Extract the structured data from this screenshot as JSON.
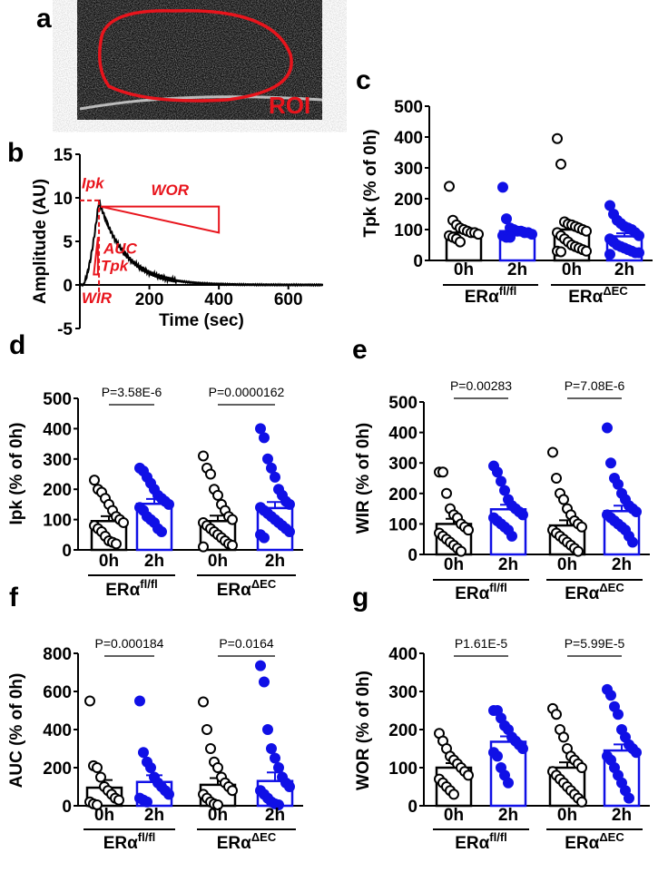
{
  "colors": {
    "control": "#000000",
    "treated": "#1010e6",
    "annotation": "#e8141c"
  },
  "panel_a": {
    "letter": "a",
    "roi_label": "ROI"
  },
  "chart_data": [
    {
      "panel": "b",
      "type": "line",
      "ylabel": "Amplitude (AU)",
      "xlabel": "Time (sec)",
      "yticks": [
        "15",
        "10",
        "5",
        "0",
        "-5"
      ],
      "xticks": [
        "200",
        "400",
        "600"
      ],
      "ylim": [
        -5,
        15
      ],
      "xlim": [
        0,
        700
      ],
      "annotations": [
        "Ipk",
        "WOR",
        "AUC",
        "Tpk",
        "WIR"
      ],
      "curve": {
        "peak_time": 55,
        "peak_amplitude": 9.7,
        "baseline": 0
      }
    },
    {
      "panel": "c",
      "type": "bar",
      "ylabel": "Tpk (% of 0h)",
      "ylim": [
        0,
        500
      ],
      "yticks": [
        "500",
        "400",
        "300",
        "200",
        "100",
        "0"
      ],
      "categories": [
        "0h",
        "2h",
        "0h",
        "2h"
      ],
      "groups": [
        "fl/fl",
        "ΔEC"
      ],
      "group_prefix": "ERα",
      "means": [
        90,
        95,
        100,
        78
      ],
      "sem": [
        12,
        11,
        20,
        10
      ],
      "pvalues": [],
      "points": [
        [
          240,
          130,
          115,
          105,
          100,
          95,
          90,
          90,
          85,
          80,
          75,
          70,
          60
        ],
        [
          237,
          135,
          105,
          100,
          95,
          95,
          90,
          90,
          85,
          80,
          75,
          75
        ],
        [
          395,
          312,
          125,
          118,
          115,
          110,
          105,
          100,
          95,
          90,
          80,
          70,
          60,
          50,
          45,
          40,
          35,
          30,
          30,
          28
        ],
        [
          178,
          150,
          130,
          120,
          110,
          105,
          100,
          90,
          80,
          70,
          60,
          50,
          45,
          40,
          35,
          30,
          25,
          25,
          20
        ]
      ]
    },
    {
      "panel": "d",
      "type": "bar",
      "ylabel": "Ipk (% of 0h)",
      "ylim": [
        0,
        500
      ],
      "yticks": [
        "500",
        "400",
        "300",
        "200",
        "100",
        "0"
      ],
      "categories": [
        "0h",
        "2h",
        "0h",
        "2h"
      ],
      "groups": [
        "fl/fl",
        "ΔEC"
      ],
      "group_prefix": "ERα",
      "means": [
        95,
        152,
        95,
        138
      ],
      "sem": [
        16,
        16,
        18,
        20
      ],
      "pvalues": [
        "P=3.58E-6",
        "P=0.0000162"
      ],
      "points": [
        [
          230,
          200,
          190,
          170,
          150,
          130,
          110,
          100,
          90,
          80,
          70,
          60,
          45,
          30,
          25,
          20
        ],
        [
          270,
          260,
          240,
          220,
          200,
          180,
          170,
          160,
          150,
          140,
          130,
          110,
          100,
          90,
          70,
          60
        ],
        [
          310,
          270,
          250,
          200,
          180,
          150,
          130,
          110,
          100,
          90,
          80,
          70,
          60,
          50,
          40,
          30,
          20,
          15,
          10
        ],
        [
          400,
          370,
          300,
          270,
          240,
          200,
          180,
          160,
          150,
          140,
          130,
          120,
          110,
          100,
          90,
          80,
          70,
          60,
          50,
          40
        ]
      ]
    },
    {
      "panel": "e",
      "type": "bar",
      "ylabel": "WIR (% of 0h)",
      "ylim": [
        0,
        500
      ],
      "yticks": [
        "500",
        "400",
        "300",
        "200",
        "100",
        "0"
      ],
      "categories": [
        "0h",
        "2h",
        "0h",
        "2h"
      ],
      "groups": [
        "fl/fl",
        "ΔEC"
      ],
      "group_prefix": "ERα",
      "means": [
        100,
        148,
        95,
        142
      ],
      "sem": [
        17,
        15,
        17,
        18
      ],
      "pvalues": [
        "P=0.00283",
        "P=7.08E-6"
      ],
      "points": [
        [
          270,
          270,
          200,
          150,
          130,
          120,
          100,
          90,
          80,
          70,
          60,
          50,
          40,
          30,
          20,
          10
        ],
        [
          290,
          270,
          240,
          210,
          180,
          160,
          150,
          140,
          130,
          120,
          110,
          100,
          90,
          80,
          60
        ],
        [
          335,
          250,
          200,
          180,
          150,
          130,
          110,
          100,
          90,
          80,
          70,
          60,
          50,
          40,
          30,
          20,
          10
        ],
        [
          415,
          300,
          250,
          230,
          200,
          180,
          160,
          150,
          140,
          130,
          120,
          110,
          100,
          90,
          80,
          60,
          40
        ]
      ]
    },
    {
      "panel": "f",
      "type": "bar",
      "ylabel": "AUC (% of 0h)",
      "ylim": [
        0,
        800
      ],
      "yticks": [
        "800",
        "600",
        "400",
        "200",
        "0"
      ],
      "categories": [
        "0h",
        "2h",
        "0h",
        "2h"
      ],
      "groups": [
        "fl/fl",
        "ΔEC"
      ],
      "group_prefix": "ERα",
      "means": [
        95,
        125,
        110,
        130
      ],
      "sem": [
        40,
        35,
        35,
        45
      ],
      "pvalues": [
        "P=0.000184",
        "P=0.0164"
      ],
      "points": [
        [
          550,
          210,
          200,
          150,
          100,
          80,
          60,
          40,
          30,
          20,
          10,
          5
        ],
        [
          550,
          280,
          230,
          200,
          150,
          120,
          100,
          80,
          60,
          40,
          30,
          20
        ],
        [
          545,
          400,
          300,
          230,
          200,
          150,
          120,
          100,
          80,
          60,
          40,
          20,
          10,
          5
        ],
        [
          735,
          650,
          400,
          300,
          250,
          200,
          150,
          120,
          100,
          80,
          60,
          40,
          20,
          10,
          5
        ]
      ]
    },
    {
      "panel": "g",
      "type": "bar",
      "ylabel": "WOR (% of 0h)",
      "ylim": [
        0,
        400
      ],
      "yticks": [
        "400",
        "300",
        "200",
        "100",
        "0"
      ],
      "categories": [
        "0h",
        "2h",
        "0h",
        "2h"
      ],
      "groups": [
        "fl/fl",
        "ΔEC"
      ],
      "group_prefix": "ERα",
      "means": [
        100,
        168,
        100,
        145
      ],
      "sem": [
        12,
        14,
        14,
        16
      ],
      "pvalues": [
        "P1.61E-5",
        "P=5.99E-5"
      ],
      "points": [
        [
          190,
          170,
          150,
          130,
          120,
          110,
          100,
          90,
          80,
          70,
          60,
          50,
          40,
          30
        ],
        [
          250,
          250,
          230,
          210,
          200,
          180,
          170,
          160,
          150,
          140,
          130,
          100,
          80,
          60
        ],
        [
          255,
          240,
          200,
          180,
          150,
          130,
          120,
          110,
          100,
          90,
          80,
          70,
          60,
          50,
          40,
          30,
          20,
          10
        ],
        [
          305,
          290,
          260,
          240,
          200,
          180,
          160,
          150,
          140,
          130,
          120,
          100,
          80,
          60,
          40,
          20
        ]
      ]
    }
  ]
}
